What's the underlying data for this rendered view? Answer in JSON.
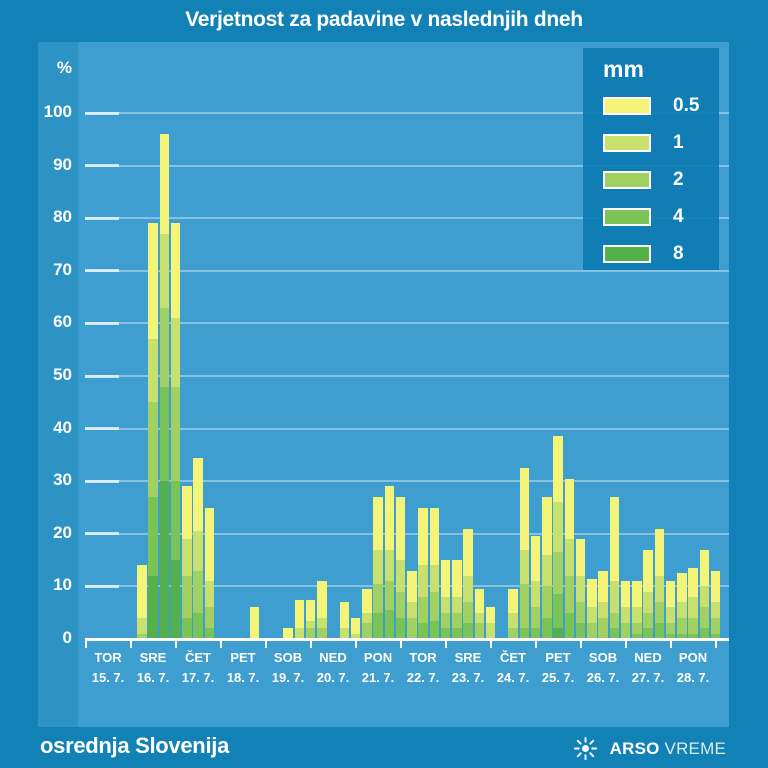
{
  "colors": {
    "outer_bg": "#1181b6",
    "panel_bg": "#3e9ecf",
    "strip_bg": "#2d93c4",
    "legend_bg": "#0d7cb2",
    "text": "#ffffff",
    "bar_colors": [
      "#f4f478",
      "#c8e06e",
      "#a0d162",
      "#7ac355",
      "#53b148"
    ]
  },
  "footer": {
    "region": "osrednja Slovenija",
    "brand_bold": "ARSO",
    "brand_light": "VREME"
  },
  "chart_data": {
    "type": "bar",
    "title": "Verjetnost za padavine v naslednjih dneh",
    "ylabel": "%",
    "ylim": [
      0,
      100
    ],
    "grid": true,
    "legend_position": "top-right",
    "y_axis": {
      "unit": "%",
      "ticks": [
        100,
        90,
        80,
        70,
        60,
        50,
        40,
        30,
        20,
        10,
        0
      ]
    },
    "legend": {
      "title": "mm",
      "entries": [
        {
          "label": "0.5",
          "color": "#f4f478"
        },
        {
          "label": "1",
          "color": "#c8e06e"
        },
        {
          "label": "2",
          "color": "#a0d162"
        },
        {
          "label": "4",
          "color": "#7ac355"
        },
        {
          "label": "8",
          "color": "#53b148"
        }
      ]
    },
    "series_note": "Each day has four 6-hour bars; each bar lists cumulative exceedance probability in % for >=0.5, >=1, >=2, >=4, >=8 mm (overlaid, greener = higher threshold).",
    "days": [
      {
        "name": "TOR",
        "date": "15. 7.",
        "bars": [
          [
            0,
            0,
            0,
            0,
            0
          ],
          [
            0,
            0,
            0,
            0,
            0
          ],
          [
            0,
            0,
            0,
            0,
            0
          ],
          [
            0,
            0,
            0,
            0,
            0
          ]
        ]
      },
      {
        "name": "SRE",
        "date": "16. 7.",
        "bars": [
          [
            14,
            4,
            1,
            0,
            0
          ],
          [
            79,
            57,
            45,
            27,
            12
          ],
          [
            96,
            77,
            63,
            48,
            30
          ],
          [
            79,
            61,
            48,
            30,
            15
          ]
        ]
      },
      {
        "name": "ČET",
        "date": "17. 7.",
        "bars": [
          [
            29,
            19,
            12,
            4,
            0
          ],
          [
            34.5,
            20.5,
            13,
            5,
            0
          ],
          [
            25,
            11,
            6,
            2,
            0
          ],
          [
            0,
            0,
            0,
            0,
            0
          ]
        ]
      },
      {
        "name": "PET",
        "date": "18. 7.",
        "bars": [
          [
            0,
            0,
            0,
            0,
            0
          ],
          [
            0,
            0,
            0,
            0,
            0
          ],
          [
            6,
            0,
            0,
            0,
            0
          ],
          [
            0,
            0,
            0,
            0,
            0
          ]
        ]
      },
      {
        "name": "SOB",
        "date": "19. 7.",
        "bars": [
          [
            0,
            0,
            0,
            0,
            0
          ],
          [
            2,
            0,
            0,
            0,
            0
          ],
          [
            7.5,
            2,
            0,
            0,
            0
          ],
          [
            7.5,
            3.5,
            2,
            0,
            0
          ]
        ]
      },
      {
        "name": "NED",
        "date": "20. 7.",
        "bars": [
          [
            11,
            4,
            2,
            0,
            0
          ],
          [
            0,
            0,
            0,
            0,
            0
          ],
          [
            7,
            2,
            0,
            0,
            0
          ],
          [
            4,
            1,
            0,
            0,
            0
          ]
        ]
      },
      {
        "name": "PON",
        "date": "21. 7.",
        "bars": [
          [
            9.5,
            5,
            3,
            0,
            0
          ],
          [
            27,
            17,
            10.5,
            5,
            0
          ],
          [
            29,
            17,
            11,
            5.5,
            0
          ],
          [
            27,
            15,
            9,
            4,
            0
          ]
        ]
      },
      {
        "name": "TOR",
        "date": "22. 7.",
        "bars": [
          [
            13,
            7,
            4,
            0,
            0
          ],
          [
            25,
            14,
            8,
            3,
            0
          ],
          [
            25,
            14,
            9,
            3.5,
            0
          ],
          [
            15,
            8,
            5,
            2,
            0
          ]
        ]
      },
      {
        "name": "SRE",
        "date": "23. 7.",
        "bars": [
          [
            15,
            8,
            5,
            2,
            0
          ],
          [
            21,
            12,
            7,
            3,
            0
          ],
          [
            9.5,
            5,
            3,
            0,
            0
          ],
          [
            6,
            3,
            0,
            0,
            0
          ]
        ]
      },
      {
        "name": "ČET",
        "date": "24. 7.",
        "bars": [
          [
            0,
            0,
            0,
            0,
            0
          ],
          [
            9.5,
            5,
            2,
            0,
            0
          ],
          [
            32.5,
            17,
            10.5,
            2,
            0
          ],
          [
            19.5,
            11,
            6,
            2,
            0
          ]
        ]
      },
      {
        "name": "PET",
        "date": "25. 7.",
        "bars": [
          [
            27,
            16,
            10,
            4,
            0
          ],
          [
            38.5,
            26,
            16.5,
            8.5,
            2
          ],
          [
            30.5,
            19,
            12,
            5,
            0
          ],
          [
            19,
            12,
            7,
            3,
            0
          ]
        ]
      },
      {
        "name": "SOB",
        "date": "26. 7.",
        "bars": [
          [
            11.5,
            6,
            3,
            0,
            0
          ],
          [
            13,
            7,
            4,
            0,
            0
          ],
          [
            27,
            11,
            5,
            2,
            0
          ],
          [
            11,
            6,
            3,
            0,
            0
          ]
        ]
      },
      {
        "name": "NED",
        "date": "27. 7.",
        "bars": [
          [
            11,
            6,
            3,
            1,
            0
          ],
          [
            17,
            9,
            5,
            2,
            0
          ],
          [
            21,
            12,
            7,
            3,
            0
          ],
          [
            11,
            6,
            3,
            1,
            0
          ]
        ]
      },
      {
        "name": "PON",
        "date": "28. 7.",
        "bars": [
          [
            12.5,
            7,
            4,
            1,
            0
          ],
          [
            13.5,
            8,
            4,
            1,
            0
          ],
          [
            17,
            10,
            6,
            2,
            0
          ],
          [
            13,
            7,
            4,
            1,
            0
          ]
        ]
      }
    ]
  }
}
